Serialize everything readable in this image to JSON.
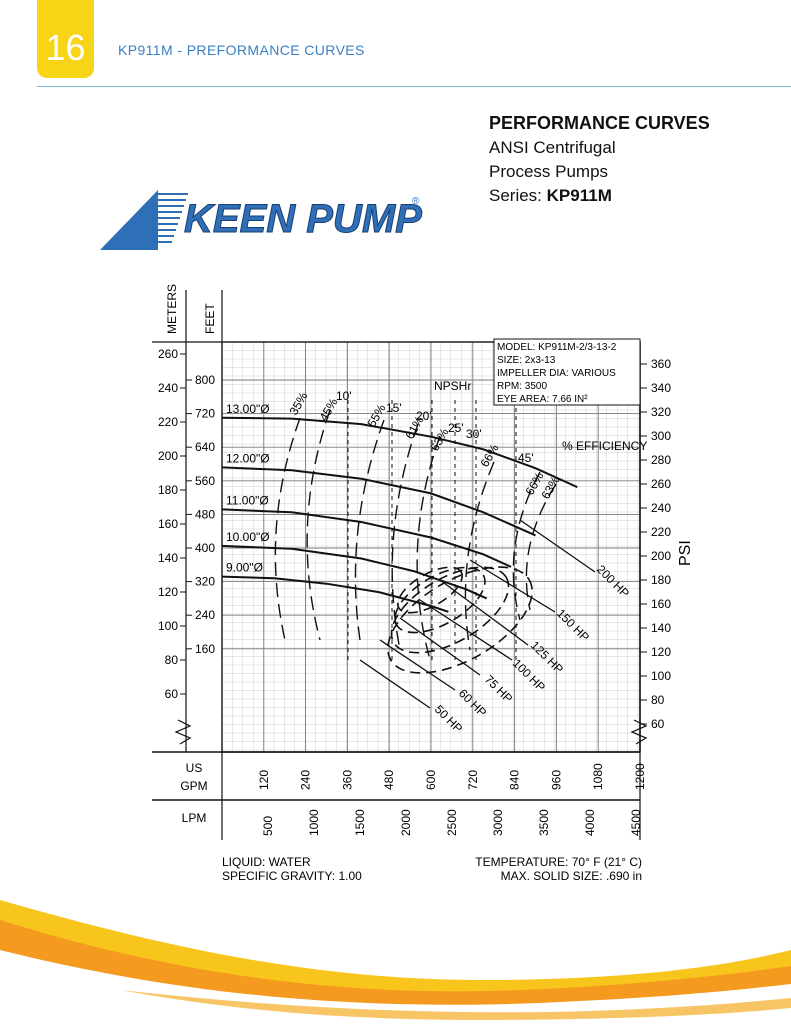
{
  "page": {
    "number": "16",
    "running_title": "KP911M - PREFORMANCE CURVES",
    "heading": {
      "title": "PERFORMANCE CURVES",
      "line1": "ANSI Centrifugal",
      "line2": "Process Pumps",
      "series_label": "Series:",
      "series_value": "KP911M"
    },
    "logo_text": "KEEN PUMP",
    "logo_mark": "®"
  },
  "colors": {
    "badge": "#f7d416",
    "title_blue": "#3a7fc1",
    "logo_blue": "#2f6fb8",
    "wave_orange": "#f39a1f",
    "wave_yellow": "#f7c51c"
  },
  "chart_data": {
    "type": "line",
    "info_box": [
      "MODEL: KP911M-2/3-13-2",
      "SIZE: 2x3-13",
      "IMPELLER DIA: VARIOUS",
      "RPM: 3500",
      "EYE AREA: 7.66 IN²"
    ],
    "npsh_label": "NPSHr",
    "efficiency_label": "% EFFICIENCY",
    "axis_titles": {
      "meters": "METERS",
      "feet": "FEET",
      "psi": "PSI",
      "us_gpm": "US\nGPM",
      "lpm": "LPM"
    },
    "x_range_gpm": [
      0,
      1200
    ],
    "y_range_ft": [
      40,
      890
    ],
    "grid": true,
    "gpm_ticks": [
      "120",
      "240",
      "360",
      "480",
      "600",
      "720",
      "840",
      "960",
      "1080",
      "1200"
    ],
    "lpm_ticks": [
      "500",
      "1000",
      "1500",
      "2000",
      "2500",
      "3000",
      "3500",
      "4000",
      "4500"
    ],
    "meter_ticks": [
      "260",
      "240",
      "220",
      "200",
      "180",
      "160",
      "140",
      "120",
      "100",
      "80",
      "60"
    ],
    "feet_ticks": [
      "800",
      "720",
      "640",
      "560",
      "480",
      "400",
      "320",
      "240",
      "160"
    ],
    "psi_ticks": [
      "360",
      "340",
      "320",
      "300",
      "280",
      "260",
      "240",
      "220",
      "200",
      "180",
      "160",
      "140",
      "120",
      "100",
      "80",
      "60"
    ],
    "impellers": [
      {
        "label": "13.00\"Ø",
        "gpm": [
          0,
          200,
          400,
          600,
          750,
          900,
          1020
        ],
        "ft": [
          710,
          708,
          695,
          665,
          635,
          590,
          545
        ]
      },
      {
        "label": "12.00\"Ø",
        "gpm": [
          0,
          200,
          400,
          600,
          750,
          900
        ],
        "ft": [
          592,
          585,
          565,
          530,
          485,
          430
        ]
      },
      {
        "label": "11.00\"Ø",
        "gpm": [
          0,
          200,
          400,
          600,
          750,
          830
        ],
        "ft": [
          492,
          485,
          462,
          425,
          385,
          355
        ]
      },
      {
        "label": "10.00\"Ø",
        "gpm": [
          0,
          200,
          400,
          550,
          700,
          760
        ],
        "ft": [
          405,
          398,
          375,
          345,
          302,
          280
        ]
      },
      {
        "label": "9.00\"Ø",
        "gpm": [
          0,
          150,
          300,
          450,
          600,
          650
        ],
        "ft": [
          332,
          328,
          315,
          295,
          262,
          248
        ]
      }
    ],
    "efficiency_labels": [
      "35%",
      "45%",
      "55%",
      "61%",
      "63%",
      "66%",
      "66%",
      "63%"
    ],
    "npsh_labels": [
      "10'",
      "15'",
      "20'",
      "25'",
      "30'",
      "45'"
    ],
    "hp_labels": [
      "200 HP",
      "150 HP",
      "125 HP",
      "100 HP",
      "75 HP",
      "60 HP",
      "50 HP"
    ],
    "notes_left": [
      "LIQUID: WATER",
      "SPECIFIC GRAVITY: 1.00"
    ],
    "notes_right": [
      "TEMPERATURE: 70° F (21° C)",
      "MAX. SOLID SIZE: .690 in"
    ]
  }
}
